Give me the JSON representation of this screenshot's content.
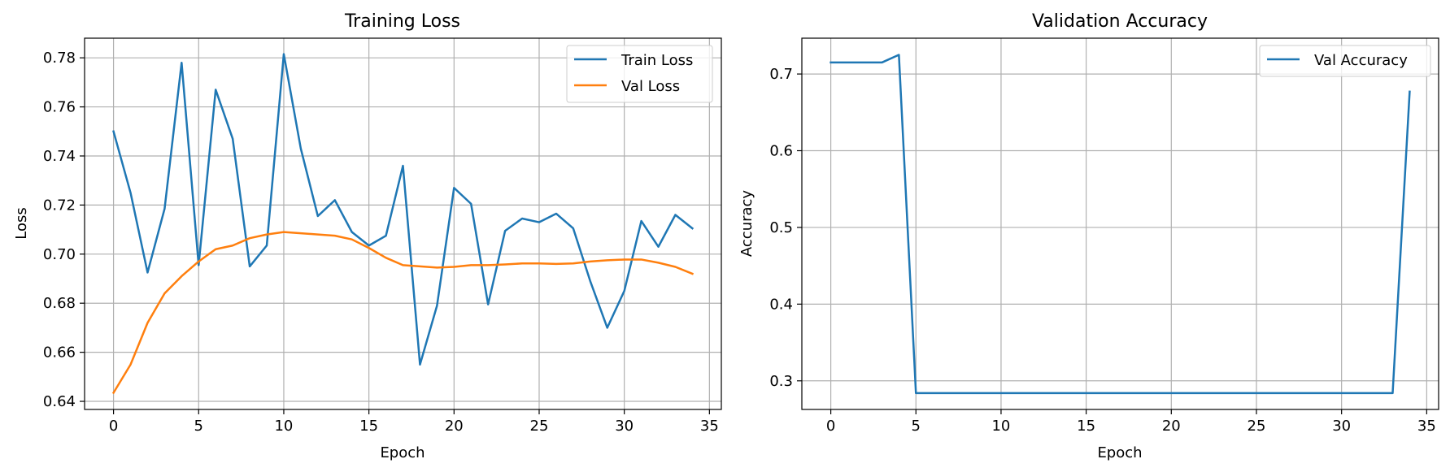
{
  "chart_data": [
    {
      "type": "line",
      "title": "Training Loss",
      "xlabel": "Epoch",
      "ylabel": "Loss",
      "xlim": [
        -1.7,
        35.7
      ],
      "ylim": [
        0.6367,
        0.788
      ],
      "xticks": [
        0,
        5,
        10,
        15,
        20,
        25,
        30,
        35
      ],
      "yticks": [
        0.64,
        0.66,
        0.68,
        0.7,
        0.72,
        0.74,
        0.76,
        0.78
      ],
      "ytick_decimals": 2,
      "grid": true,
      "legend_position": "upper-right",
      "x": [
        0,
        1,
        2,
        3,
        4,
        5,
        6,
        7,
        8,
        9,
        10,
        11,
        12,
        13,
        14,
        15,
        16,
        17,
        18,
        19,
        20,
        21,
        22,
        23,
        24,
        25,
        26,
        27,
        28,
        29,
        30,
        31,
        32,
        33,
        34
      ],
      "series": [
        {
          "name": "Train Loss",
          "color": "#1f77b4",
          "values": [
            0.75,
            0.725,
            0.6925,
            0.7185,
            0.778,
            0.6955,
            0.767,
            0.747,
            0.695,
            0.7035,
            0.7815,
            0.743,
            0.7155,
            0.722,
            0.709,
            0.7035,
            0.7075,
            0.736,
            0.655,
            0.679,
            0.727,
            0.7205,
            0.6795,
            0.7095,
            0.7145,
            0.713,
            0.7165,
            0.7105,
            0.689,
            0.67,
            0.685,
            0.7135,
            0.703,
            0.716,
            0.7105
          ]
        },
        {
          "name": "Val Loss",
          "color": "#ff7f0e",
          "values": [
            0.6435,
            0.655,
            0.672,
            0.684,
            0.691,
            0.697,
            0.702,
            0.7035,
            0.7065,
            0.708,
            0.709,
            0.7085,
            0.708,
            0.7075,
            0.706,
            0.7025,
            0.6985,
            0.6955,
            0.695,
            0.6945,
            0.6948,
            0.6955,
            0.6955,
            0.6958,
            0.6962,
            0.6962,
            0.696,
            0.6962,
            0.697,
            0.6975,
            0.6978,
            0.6978,
            0.6965,
            0.6948,
            0.692
          ]
        }
      ]
    },
    {
      "type": "line",
      "title": "Validation Accuracy",
      "xlabel": "Epoch",
      "ylabel": "Accuracy",
      "xlim": [
        -1.7,
        35.7
      ],
      "ylim": [
        0.2627,
        0.7467
      ],
      "xticks": [
        0,
        5,
        10,
        15,
        20,
        25,
        30,
        35
      ],
      "yticks": [
        0.3,
        0.4,
        0.5,
        0.6,
        0.7
      ],
      "ytick_decimals": 1,
      "grid": true,
      "legend_position": "upper-right",
      "x": [
        0,
        1,
        2,
        3,
        4,
        5,
        6,
        7,
        8,
        9,
        10,
        11,
        12,
        13,
        14,
        15,
        16,
        17,
        18,
        19,
        20,
        21,
        22,
        23,
        24,
        25,
        26,
        27,
        28,
        29,
        30,
        31,
        32,
        33,
        34
      ],
      "series": [
        {
          "name": "Val Accuracy",
          "color": "#1f77b4",
          "values": [
            0.715,
            0.715,
            0.715,
            0.715,
            0.725,
            0.284,
            0.284,
            0.284,
            0.284,
            0.284,
            0.284,
            0.284,
            0.284,
            0.284,
            0.284,
            0.284,
            0.284,
            0.284,
            0.284,
            0.284,
            0.284,
            0.284,
            0.284,
            0.284,
            0.284,
            0.284,
            0.284,
            0.284,
            0.284,
            0.284,
            0.284,
            0.284,
            0.284,
            0.284,
            0.677
          ]
        }
      ]
    }
  ]
}
